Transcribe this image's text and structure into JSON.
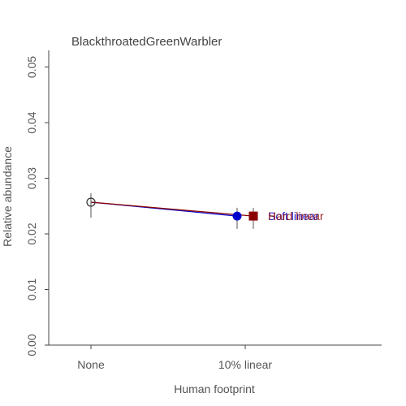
{
  "chart_data": {
    "type": "scatter",
    "title": "BlackthroatedGreenWarbler",
    "xlabel": "Human footprint",
    "ylabel": "Relative abundance",
    "x_categories": [
      "None",
      "10% linear"
    ],
    "ylim": [
      0,
      0.053
    ],
    "yticks": [
      "0.00",
      "0.01",
      "0.02",
      "0.03",
      "0.04",
      "0.05"
    ],
    "grid": false,
    "reference": {
      "x": "None",
      "y": 0.0257,
      "lower": 0.0229,
      "upper": 0.0273
    },
    "series": [
      {
        "name": "Soft linear",
        "x": "10% linear",
        "y": 0.0232,
        "lower": 0.0209,
        "upper": 0.0247,
        "color": "#0000cc",
        "marker": "circle"
      },
      {
        "name": "Hard linear",
        "x": "10% linear",
        "y": 0.0232,
        "lower": 0.0209,
        "upper": 0.0247,
        "color": "#8b0000",
        "marker": "square"
      }
    ]
  }
}
